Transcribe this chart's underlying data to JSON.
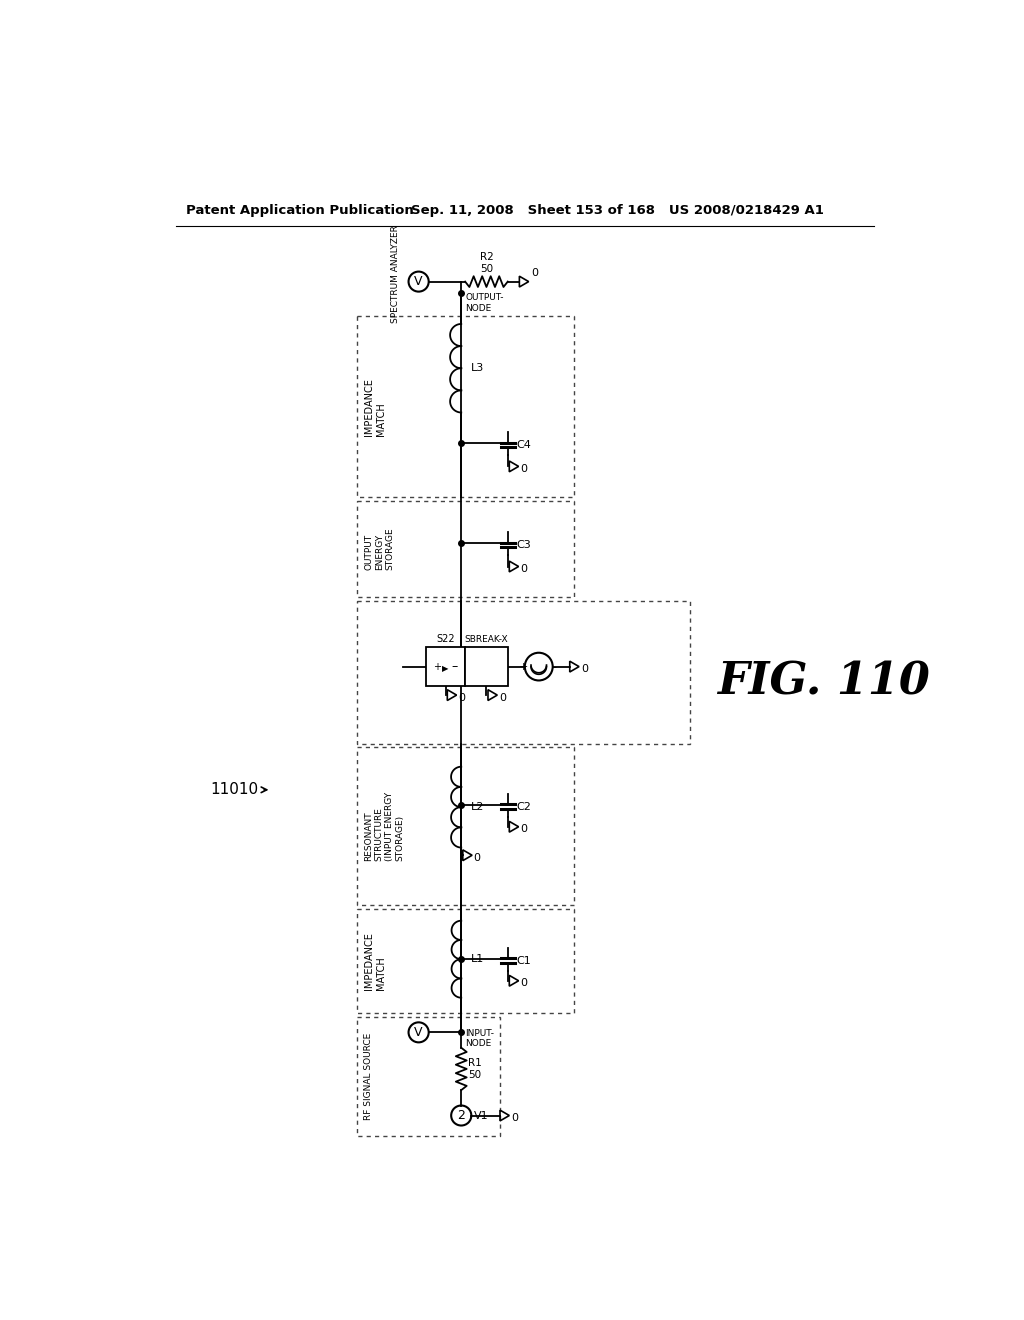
{
  "header_left": "Patent Application Publication",
  "header_right": "Sep. 11, 2008  Sheet 153 of 168  US 2008/0218429 A1",
  "fig_label": "FIG. 110",
  "circuit_label": "11010",
  "background": "#ffffff",
  "text_color": "#000000",
  "line_color": "#000000",
  "dotted_box_color": "#444444"
}
